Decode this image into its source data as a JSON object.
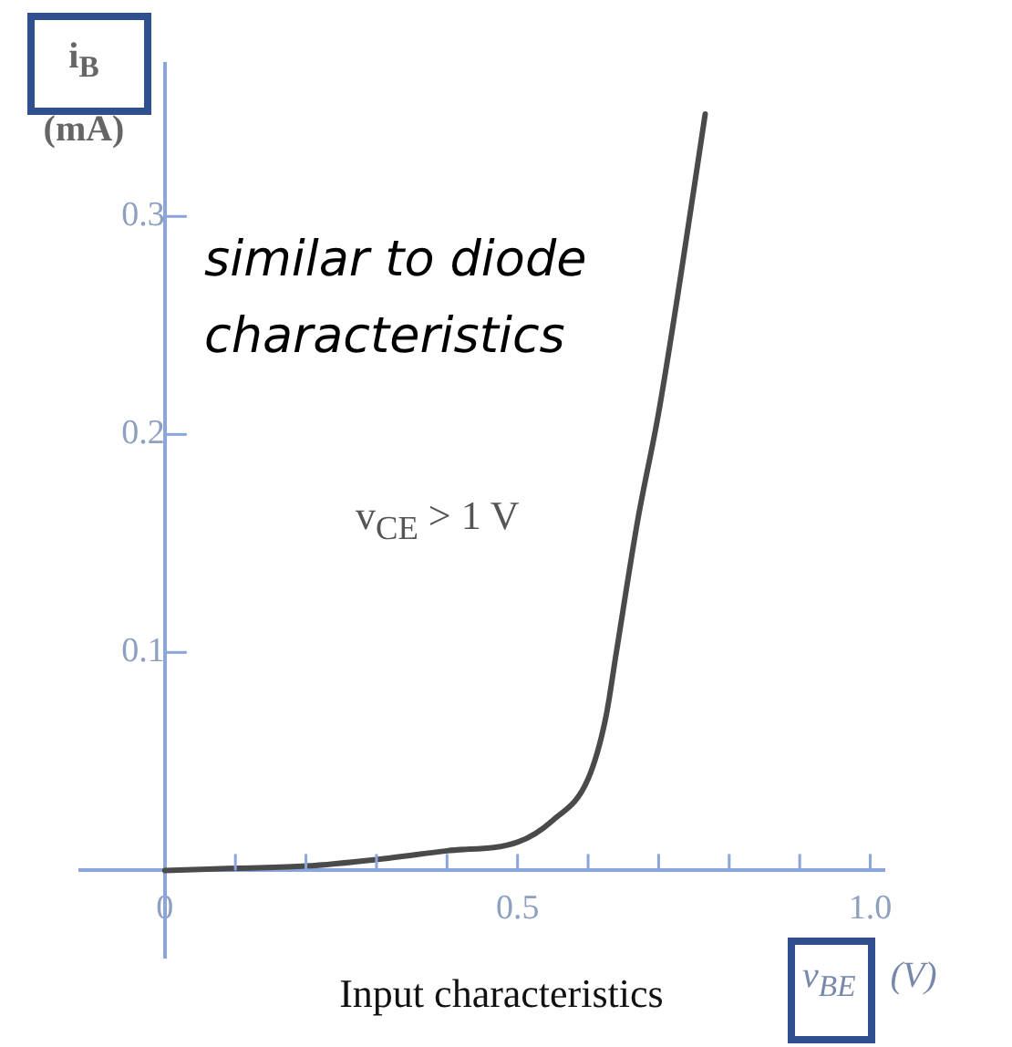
{
  "chart_data": {
    "type": "line",
    "title": "Input characteristics",
    "xlabel": "v$_{BE}$ (V)",
    "ylabel": "i$_{B}$ (mA)",
    "annotations": [
      "similar to diode characteristics",
      "v$_{CE}$ > 1 V"
    ],
    "x": [
      0,
      0.1,
      0.2,
      0.3,
      0.4,
      0.5,
      0.55,
      0.6,
      0.625,
      0.64,
      0.67,
      0.7,
      0.73,
      0.766
    ],
    "series": [
      {
        "color": "#4a4a4a",
        "values": [
          0,
          0.001,
          0.002,
          0.005,
          0.009,
          0.013,
          0.023,
          0.042,
          0.07,
          0.1,
          0.16,
          0.21,
          0.27,
          0.347
        ]
      }
    ],
    "xlim": [
      -0.12,
      1.02
    ],
    "ylim": [
      -0.04,
      0.37
    ],
    "xticks": [
      0,
      {
        "value": 0.1,
        "label": null
      },
      {
        "value": 0.2,
        "label": null
      },
      {
        "value": 0.3,
        "label": null
      },
      {
        "value": 0.4,
        "label": null
      },
      0.5,
      {
        "value": 0.6,
        "label": null
      },
      {
        "value": 0.7,
        "label": null
      },
      {
        "value": 0.8,
        "label": null
      },
      {
        "value": 0.9,
        "label": null
      },
      {
        "value": 1,
        "label": "1.0"
      }
    ],
    "yticks": [
      0.1,
      0.2,
      0.3
    ],
    "marker": "none",
    "line_style": "solid",
    "legend": false,
    "grid": false
  }
}
